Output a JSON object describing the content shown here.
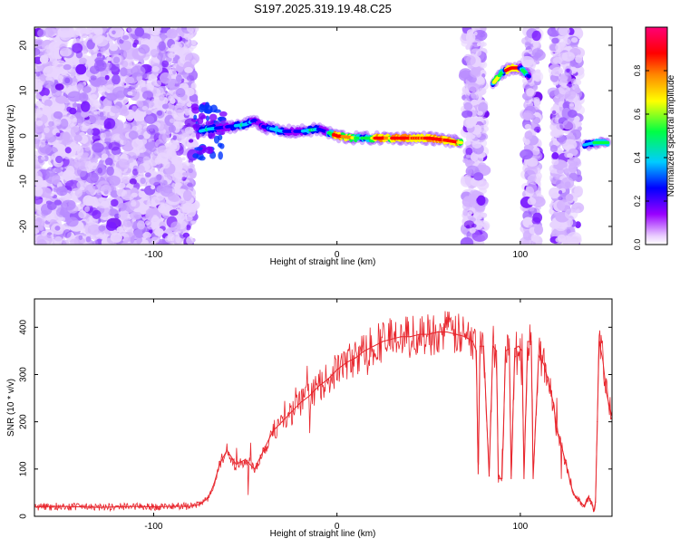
{
  "title": "S197.2025.319.19.48.C25",
  "chart_data": [
    {
      "type": "heatmap",
      "name": "spectrogram",
      "title": "S197.2025.319.19.48.C25",
      "xlabel": "Height of straight line (km)",
      "ylabel": "Frequency (Hz)",
      "xlim": [
        -165,
        150
      ],
      "ylim": [
        -24,
        24
      ],
      "xticks": [
        -100,
        0,
        100
      ],
      "xtick_labels": [
        "-100",
        "0",
        "100"
      ],
      "yticks": [
        20,
        10,
        0,
        -10,
        -20
      ],
      "ytick_labels": [
        "20",
        "10",
        "0",
        "-10",
        "-20"
      ],
      "colorbar": {
        "label": "Normalized spectral amplitude",
        "range": [
          0,
          1
        ],
        "ticks": [
          0.0,
          0.2,
          0.4,
          0.6,
          0.8
        ],
        "tick_labels": [
          "0.0",
          "0.2",
          "0.4",
          "0.6",
          "0.8"
        ],
        "colors": [
          "#ffffff",
          "#9900ff",
          "#0000ff",
          "#00ffff",
          "#00ff00",
          "#ffff00",
          "#ff8000",
          "#ff0000",
          "#ff0080"
        ]
      },
      "features": {
        "noise_regions_km": [
          [
            -165,
            -78
          ],
          [
            70,
            80
          ],
          [
            103,
            110
          ],
          [
            118,
            132
          ]
        ],
        "signal_track": {
          "x": [
            -75,
            -70,
            -60,
            -50,
            -45,
            -40,
            -30,
            -20,
            -10,
            0,
            10,
            20,
            30,
            40,
            50,
            60,
            68
          ],
          "freq_hz": [
            1,
            1.5,
            2,
            2.5,
            3.5,
            2,
            1,
            1,
            1.5,
            0,
            -0.5,
            -0.5,
            -0.5,
            -0.5,
            -0.5,
            -1,
            -1.5
          ]
        },
        "high_segment": {
          "x": [
            85,
            87,
            90,
            95,
            100,
            105
          ],
          "freq_hz": [
            11.5,
            12.5,
            14,
            15,
            15,
            13
          ]
        },
        "end_segment": {
          "x": [
            135,
            140,
            148
          ],
          "freq_hz": [
            -2,
            -1.5,
            -1.5
          ]
        }
      }
    },
    {
      "type": "line",
      "name": "snr",
      "xlabel": "Height of straight line (km)",
      "ylabel": "SNR (10 * v/v)",
      "xlim": [
        -165,
        150
      ],
      "ylim": [
        0,
        460
      ],
      "xticks": [
        -100,
        0,
        100
      ],
      "xtick_labels": [
        "-100",
        "0",
        "100"
      ],
      "yticks": [
        0,
        100,
        200,
        300,
        400
      ],
      "ytick_labels": [
        "0",
        "100",
        "200",
        "300",
        "400"
      ],
      "line_color": "#e8262d",
      "series": [
        {
          "name": "SNR",
          "x": [
            -165,
            -150,
            -140,
            -130,
            -120,
            -110,
            -100,
            -90,
            -80,
            -75,
            -70,
            -67,
            -64,
            -60,
            -55,
            -50,
            -45,
            -40,
            -35,
            -30,
            -25,
            -20,
            -15,
            -10,
            -5,
            0,
            5,
            10,
            15,
            20,
            25,
            30,
            35,
            40,
            45,
            50,
            55,
            60,
            65,
            70,
            74,
            76,
            77,
            78,
            80,
            83,
            85,
            87,
            88,
            90,
            92,
            94,
            95,
            97,
            99,
            101,
            102,
            104,
            106,
            107,
            110,
            113,
            115,
            118,
            120,
            123,
            125,
            128,
            130,
            133,
            135,
            137,
            139,
            140,
            141,
            142,
            143,
            145,
            147,
            150
          ],
          "y": [
            20,
            21,
            20,
            19,
            20,
            21,
            20,
            21,
            21,
            25,
            40,
            70,
            110,
            140,
            110,
            120,
            100,
            140,
            180,
            200,
            220,
            240,
            255,
            275,
            290,
            310,
            325,
            335,
            350,
            360,
            370,
            375,
            380,
            380,
            385,
            385,
            390,
            390,
            385,
            380,
            370,
            350,
            90,
            360,
            360,
            85,
            360,
            350,
            80,
            80,
            350,
            355,
            80,
            355,
            360,
            350,
            80,
            370,
            370,
            80,
            340,
            320,
            290,
            240,
            180,
            140,
            110,
            60,
            40,
            30,
            20,
            40,
            30,
            10,
            30,
            200,
            370,
            330,
            260,
            210
          ]
        }
      ]
    }
  ]
}
